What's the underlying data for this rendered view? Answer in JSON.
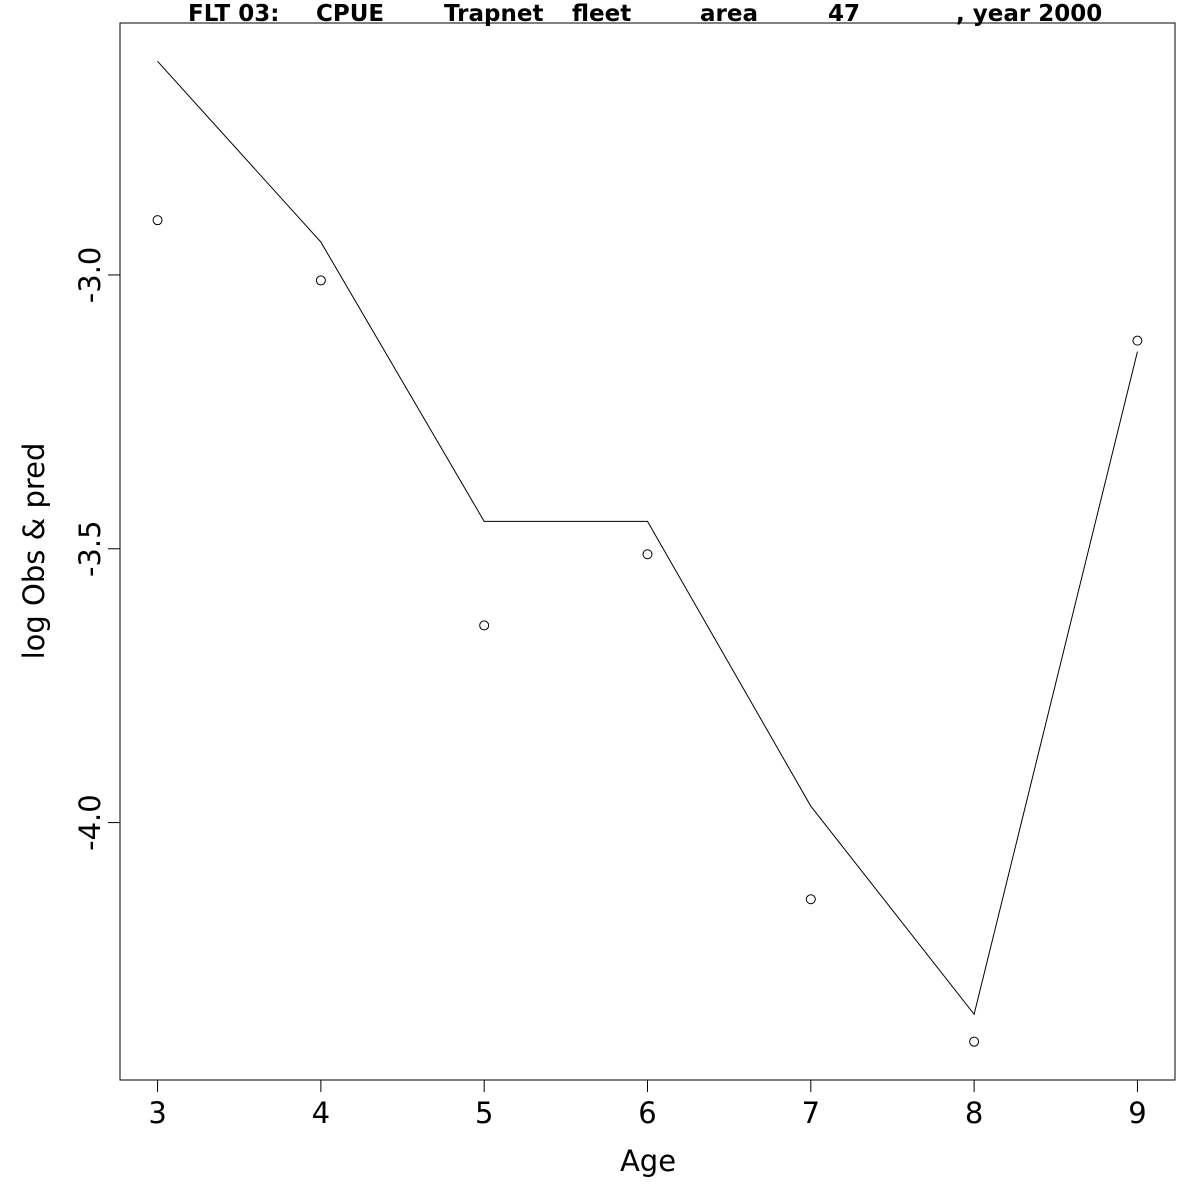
{
  "chart_data": {
    "type": "line",
    "title_parts": [
      "FLT 03:",
      "CPUE",
      "Trapnet",
      "fleet",
      "area",
      "47",
      ", year 2000"
    ],
    "xlabel": "Age",
    "ylabel": "log Obs & pred",
    "xlim": [
      2.77,
      9.23
    ],
    "ylim": [
      -4.47,
      -2.54
    ],
    "x_ticks": [
      3,
      4,
      5,
      6,
      7,
      8,
      9
    ],
    "y_ticks": [
      -4.0,
      -3.5,
      -3.0
    ],
    "y_tick_labels": [
      "-4.0",
      "-3.5",
      "-3.0"
    ],
    "grid": false,
    "legend": "none",
    "series": [
      {
        "style": "line",
        "x": [
          3,
          4,
          5,
          6,
          7,
          8,
          9
        ],
        "y": [
          -2.61,
          -2.94,
          -3.45,
          -3.45,
          -3.97,
          -4.35,
          -3.14
        ]
      },
      {
        "style": "points",
        "x": [
          3,
          4,
          5,
          6,
          7,
          8,
          9
        ],
        "y": [
          -2.9,
          -3.01,
          -3.64,
          -3.51,
          -4.14,
          -4.4,
          -3.12
        ]
      }
    ]
  }
}
